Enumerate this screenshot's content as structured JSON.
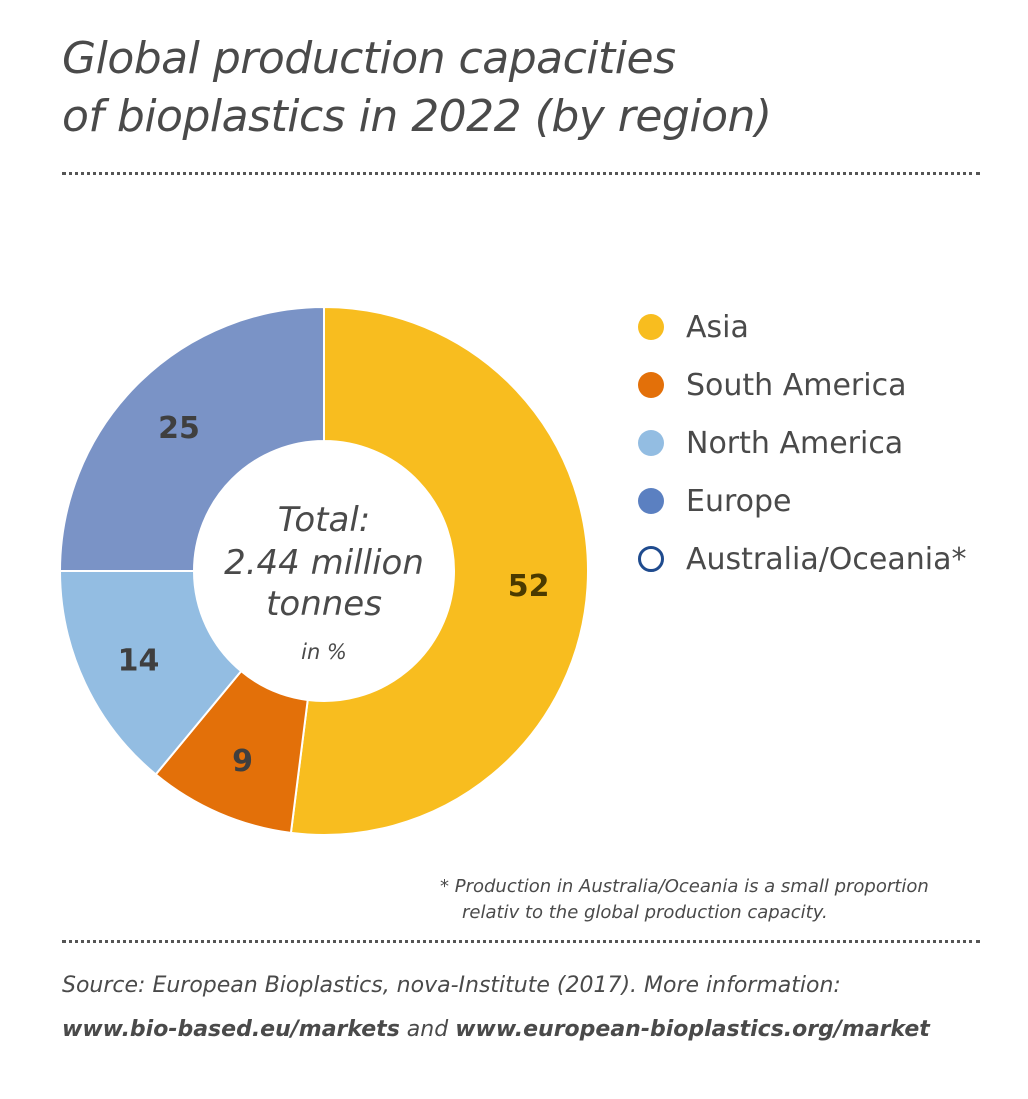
{
  "title_line1": "Global production capacities",
  "title_line2": "of bioplastics in 2022 (by region)",
  "chart_data": {
    "type": "pie",
    "categories": [
      "Asia",
      "South America",
      "North America",
      "Europe",
      "Australia/Oceania*"
    ],
    "values": [
      52,
      9,
      14,
      25,
      0
    ],
    "colors": [
      "#f8bd1f",
      "#e37009",
      "#93bde2",
      "#7a93c6",
      "#ffffff"
    ],
    "value_labels": [
      "52",
      "9",
      "14",
      "25",
      ""
    ],
    "center_total_label": "Total:",
    "center_total_value": "2.44 million",
    "center_total_unit": "tonnes",
    "center_unit_note": "in %"
  },
  "legend": [
    {
      "label": "Asia",
      "color": "#f8bd1f",
      "outline": false
    },
    {
      "label": "South America",
      "color": "#e37009",
      "outline": false
    },
    {
      "label": "North America",
      "color": "#93bde2",
      "outline": false
    },
    {
      "label": "Europe",
      "color": "#5b80c1",
      "outline": false
    },
    {
      "label": "Australia/Oceania*",
      "color": "#ffffff",
      "outline_color": "#1f4b8e",
      "outline": true
    }
  ],
  "footnote_line1": "* Production in Australia/Oceania is a small proportion",
  "footnote_line2": "relativ to the global production capacity.",
  "source_line1": "Source: European Bioplastics, nova-Institute (2017). More information:",
  "source_link1": "www.bio-based.eu/markets",
  "source_and": " and ",
  "source_link2": "www.european-bioplastics.org/market"
}
